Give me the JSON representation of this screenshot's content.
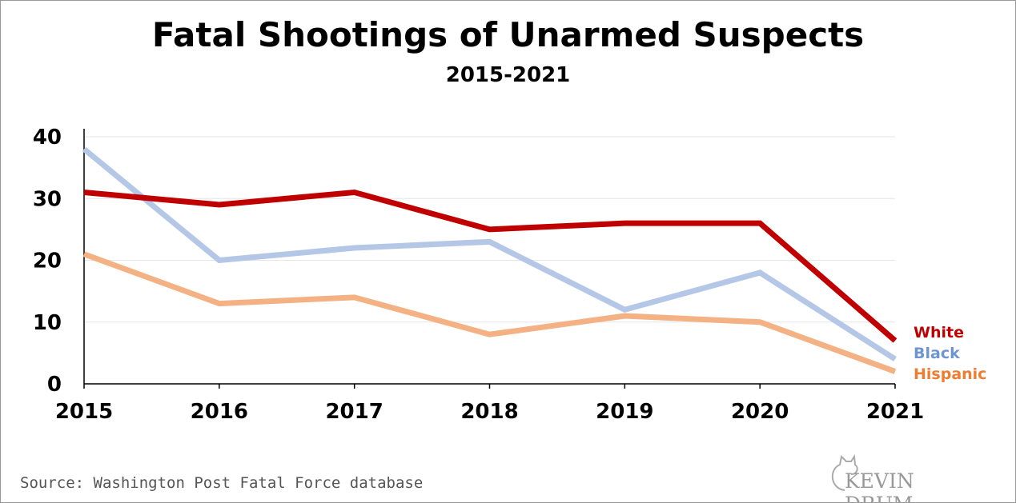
{
  "chart_data": {
    "type": "line",
    "title": "Fatal Shootings of Unarmed Suspects",
    "subtitle": "2015-2021",
    "xlabel": "",
    "ylabel": "",
    "x": [
      "2015",
      "2016",
      "2017",
      "2018",
      "2019",
      "2020",
      "2021"
    ],
    "ylim": [
      0,
      40
    ],
    "yticks": [
      "0",
      "10",
      "20",
      "30",
      "40"
    ],
    "grid": true,
    "legend": "right, labels at line ends",
    "series": [
      {
        "name": "White",
        "color": "#c00000",
        "values": [
          31,
          29,
          31,
          25,
          26,
          26,
          7
        ]
      },
      {
        "name": "Black",
        "color": "#b4c7e7",
        "label_color": "#6f94d4",
        "values": [
          38,
          20,
          22,
          23,
          12,
          18,
          4
        ]
      },
      {
        "name": "Hispanic",
        "color": "#f4b183",
        "label_color": "#ed7d31",
        "values": [
          21,
          13,
          14,
          8,
          11,
          10,
          2
        ]
      }
    ]
  },
  "source": "Source: Washington Post Fatal Force database",
  "logo": {
    "text": "KEVIN DRUM",
    "icon": "cat-icon"
  }
}
